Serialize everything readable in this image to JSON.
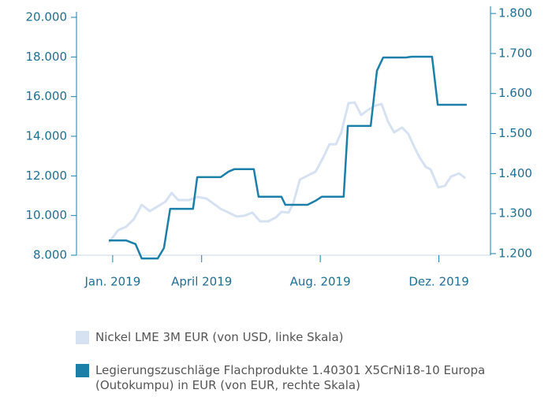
{
  "chart_data": {
    "type": "line",
    "xlim": [
      -1.22,
      12.74
    ],
    "xticks": [
      {
        "value": 0,
        "label": "Jan. 2019"
      },
      {
        "value": 3,
        "label": "April 2019"
      },
      {
        "value": 7,
        "label": "Aug. 2019"
      },
      {
        "value": 11,
        "label": "Dez. 2019"
      }
    ],
    "ylim": [
      8000,
      20476
    ],
    "yticks": [
      {
        "value": 8000,
        "label": "8.000"
      },
      {
        "value": 10000,
        "label": "10.000"
      },
      {
        "value": 12000,
        "label": "12.000"
      },
      {
        "value": 14000,
        "label": "14.000"
      },
      {
        "value": 16000,
        "label": "16.000"
      },
      {
        "value": 18000,
        "label": "18.000"
      },
      {
        "value": 20000,
        "label": "20.000"
      }
    ],
    "y2lim": [
      1196,
      1814
    ],
    "y2ticks": [
      {
        "value": 1200,
        "label": "1.200"
      },
      {
        "value": 1300,
        "label": "1.300"
      },
      {
        "value": 1400,
        "label": "1.400"
      },
      {
        "value": 1500,
        "label": "1.500"
      },
      {
        "value": 1600,
        "label": "1.600"
      },
      {
        "value": 1700,
        "label": "1.700"
      },
      {
        "value": 1800,
        "label": "1.800"
      }
    ],
    "series": [
      {
        "name": "Nickel LME 3M EUR (von USD, linke Skala)",
        "color": "#d6e2f2",
        "axis": "y",
        "x": [
          -0.13,
          0.19,
          0.45,
          0.72,
          0.98,
          1.25,
          1.52,
          1.78,
          1.99,
          2.21,
          2.58,
          2.85,
          3.16,
          3.38,
          3.64,
          3.91,
          4.18,
          4.44,
          4.71,
          4.97,
          5.24,
          5.51,
          5.69,
          5.93,
          6.09,
          6.31,
          6.62,
          6.84,
          7.1,
          7.31,
          7.53,
          7.71,
          7.95,
          8.16,
          8.38,
          8.59,
          8.86,
          9.07,
          9.28,
          9.49,
          9.76,
          9.97,
          10.19,
          10.35,
          10.56,
          10.72,
          10.98,
          11.2,
          11.41,
          11.68,
          11.89
        ],
        "values": [
          8640,
          9270,
          9430,
          9830,
          10540,
          10220,
          10460,
          10700,
          11140,
          10780,
          10780,
          10940,
          10860,
          10620,
          10340,
          10150,
          9950,
          9990,
          10150,
          9710,
          9710,
          9910,
          10190,
          10150,
          10620,
          11810,
          12050,
          12210,
          12930,
          13600,
          13600,
          14200,
          15670,
          15710,
          15070,
          15310,
          15550,
          15630,
          14750,
          14200,
          14440,
          14120,
          13400,
          12930,
          12450,
          12330,
          11420,
          11500,
          11970,
          12130,
          11890
        ]
      },
      {
        "name": "Legierungszuschläge Flachprodukte 1.40301 X5CrNi18-10 Europa (Outokumpu) in EUR (von EUR, rechte Skala)",
        "color": "#1b7fa8",
        "axis": "y2",
        "x": [
          -0.13,
          0.45,
          0.77,
          0.98,
          1.52,
          1.73,
          1.94,
          2.71,
          2.85,
          3.64,
          3.91,
          4.1,
          4.76,
          4.92,
          5.69,
          5.82,
          6.57,
          6.84,
          7.05,
          7.79,
          7.93,
          8.7,
          8.91,
          9.12,
          9.89,
          10.08,
          10.77,
          10.96,
          11.94
        ],
        "values": [
          1233,
          1233,
          1224,
          1188,
          1188,
          1214,
          1312,
          1312,
          1391,
          1391,
          1405,
          1411,
          1411,
          1342,
          1342,
          1322,
          1322,
          1332,
          1342,
          1342,
          1519,
          1519,
          1657,
          1690,
          1690,
          1692,
          1692,
          1572,
          1572
        ]
      }
    ]
  }
}
